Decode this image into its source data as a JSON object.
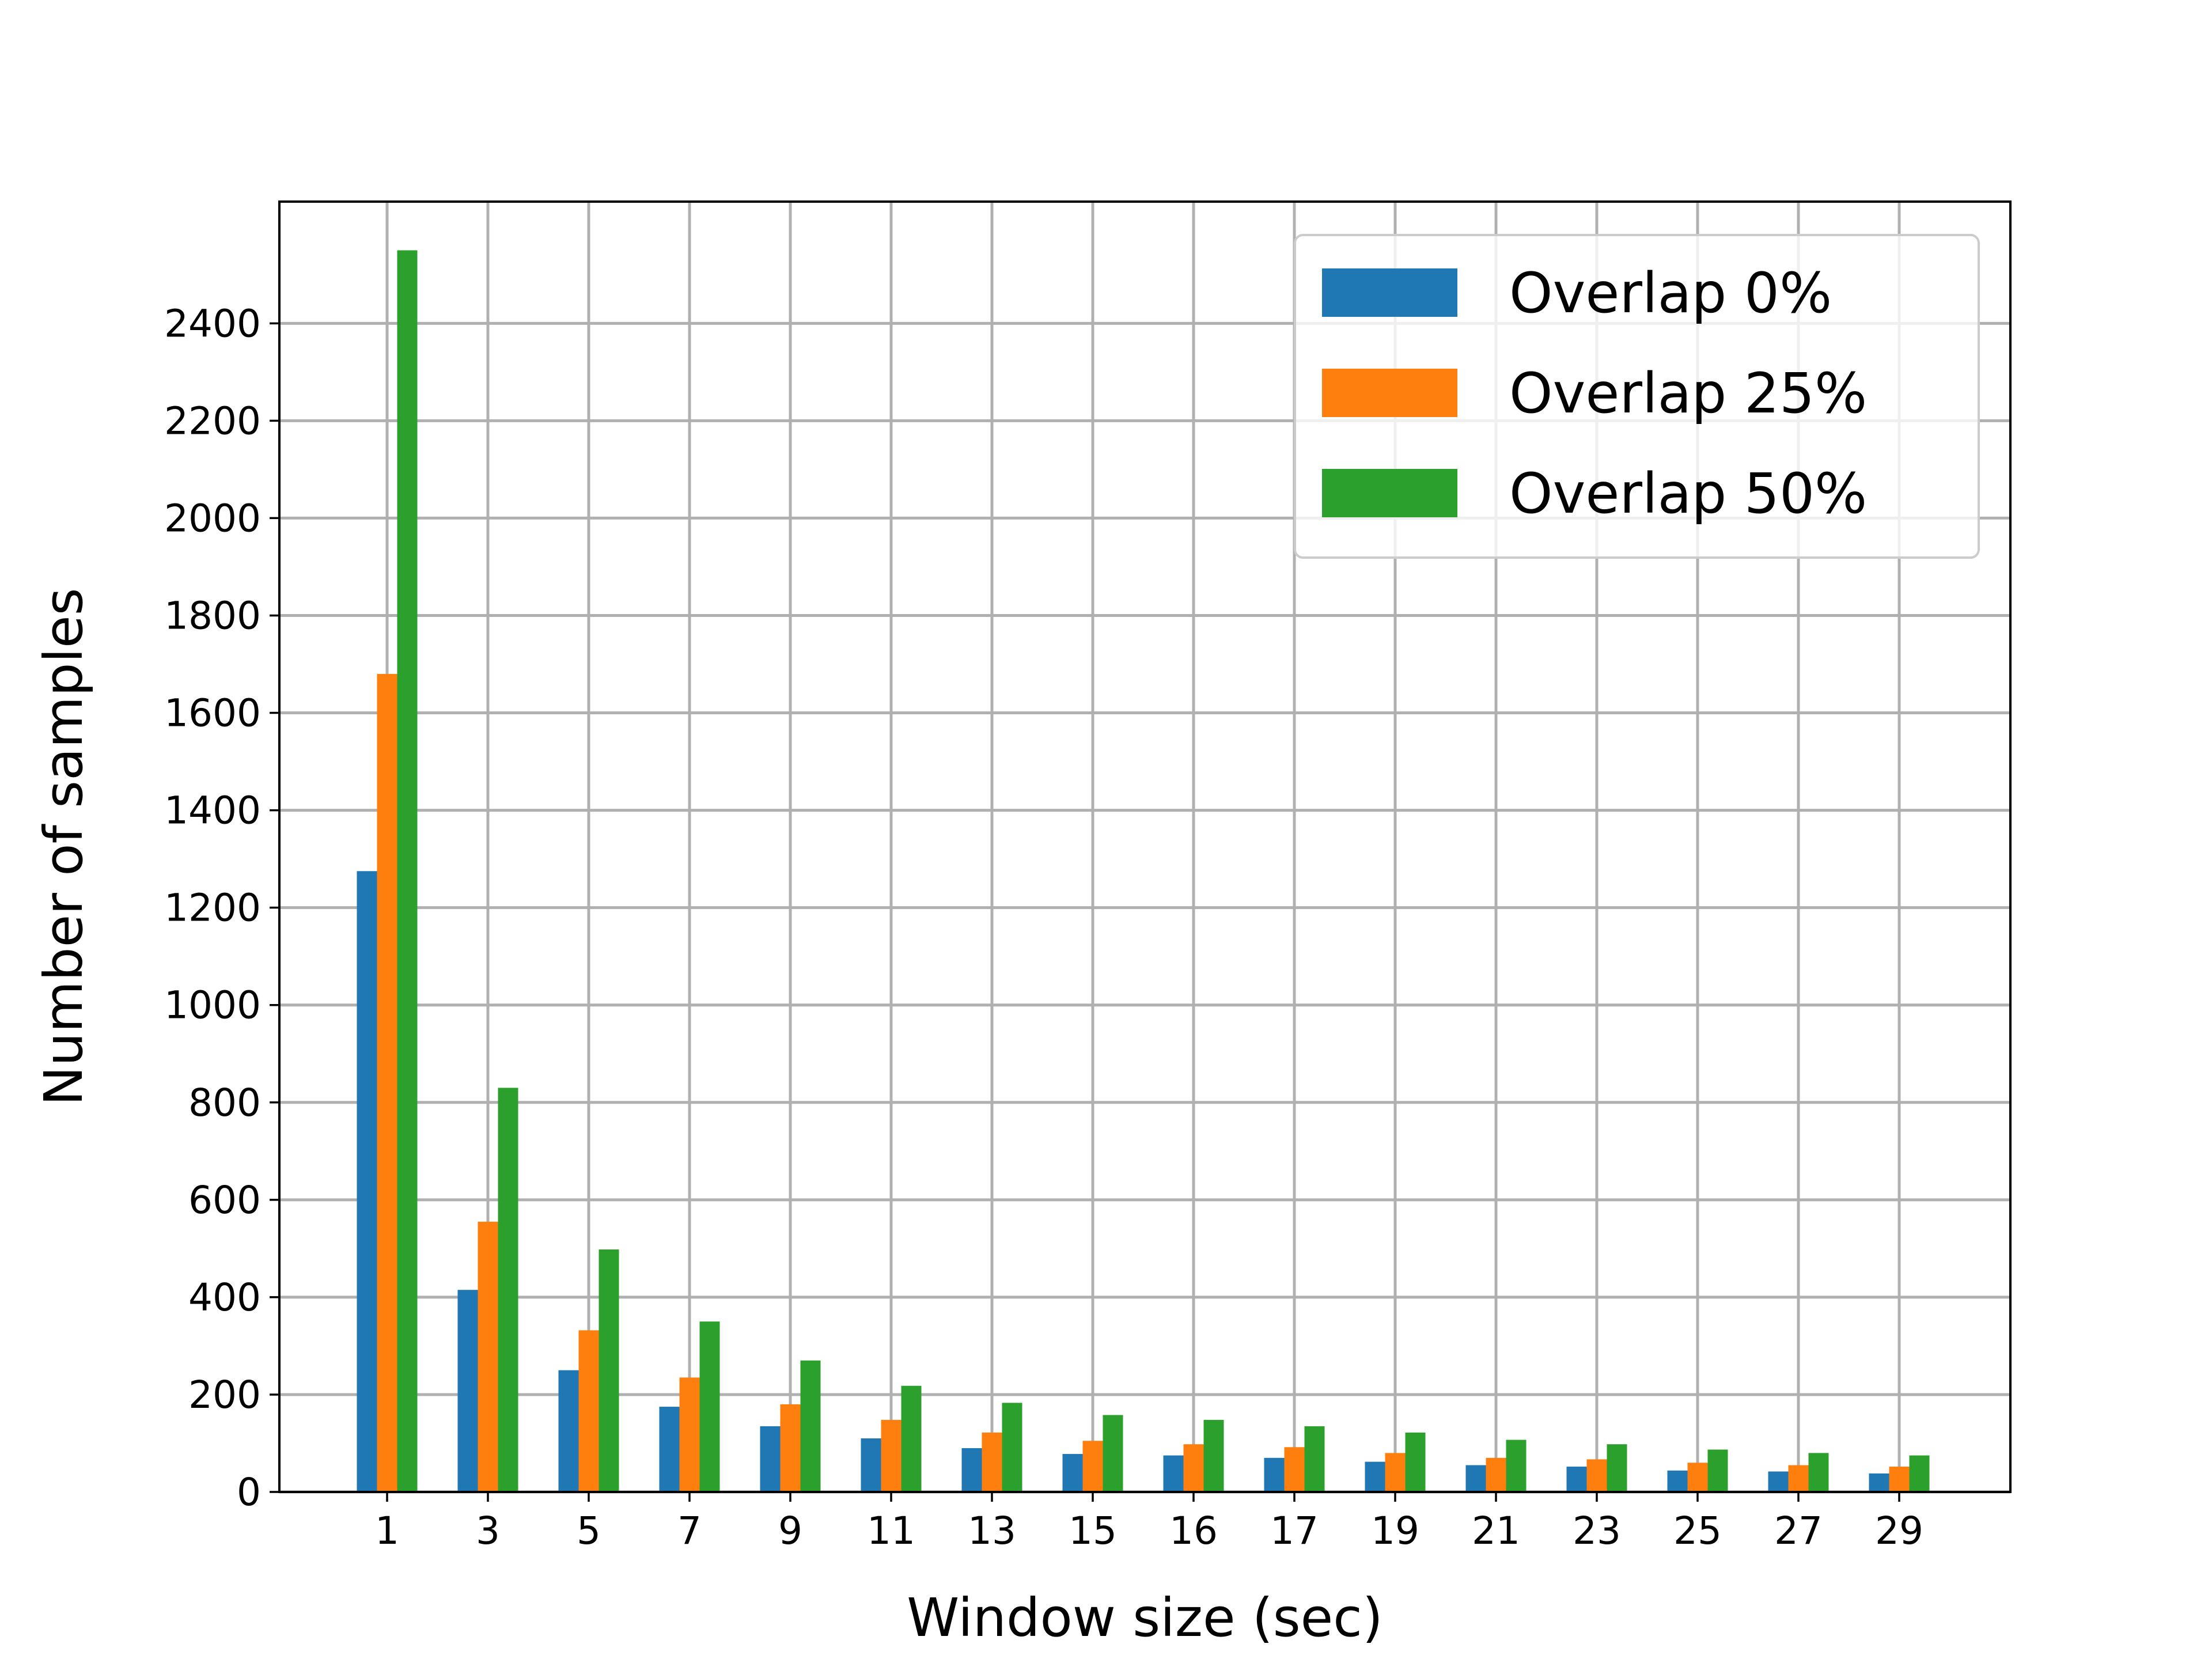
{
  "chart_data": {
    "type": "bar",
    "xlabel": "Window size (sec)",
    "ylabel": "Number of samples",
    "categories": [
      "1",
      "3",
      "5",
      "7",
      "9",
      "11",
      "13",
      "15",
      "16",
      "17",
      "19",
      "21",
      "23",
      "25",
      "27",
      "29"
    ],
    "series": [
      {
        "name": "Overlap 0%",
        "color": "#1f77b4",
        "values": [
          1275,
          415,
          250,
          175,
          135,
          110,
          90,
          78,
          75,
          70,
          62,
          55,
          52,
          44,
          42,
          38
        ]
      },
      {
        "name": "Overlap 25%",
        "color": "#ff7f0e",
        "values": [
          1680,
          555,
          332,
          235,
          180,
          148,
          122,
          105,
          98,
          92,
          80,
          70,
          67,
          60,
          55,
          52
        ]
      },
      {
        "name": "Overlap 50%",
        "color": "#2ca02c",
        "values": [
          2550,
          830,
          498,
          350,
          270,
          218,
          183,
          158,
          148,
          135,
          122,
          107,
          98,
          87,
          80,
          75
        ]
      }
    ],
    "yticks": [
      0,
      200,
      400,
      600,
      800,
      1000,
      1200,
      1400,
      1600,
      1800,
      2000,
      2200,
      2400
    ],
    "ylim": [
      0,
      2650
    ],
    "grid": true,
    "legend_position": "top-right"
  }
}
